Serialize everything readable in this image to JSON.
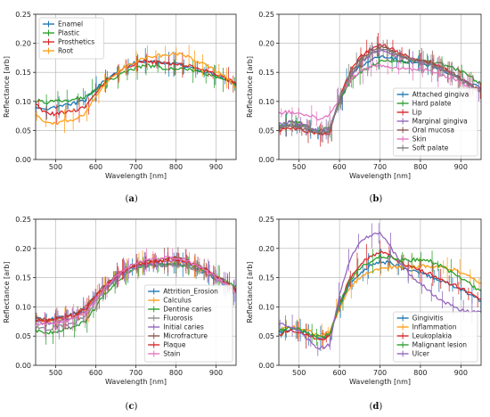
{
  "panels": [
    {
      "label_open": "(",
      "label_letter": "a",
      "label_close": ")"
    },
    {
      "label_open": "(",
      "label_letter": "b",
      "label_close": ")"
    },
    {
      "label_open": "(",
      "label_letter": "c",
      "label_close": ")"
    },
    {
      "label_open": "(",
      "label_letter": "d",
      "label_close": ")"
    }
  ],
  "chart_data": [
    {
      "type": "line",
      "xlabel": "Wavelength [nm]",
      "ylabel": "Reflectance [arb]",
      "xlim": [
        450,
        950
      ],
      "ylim": [
        0,
        0.25
      ],
      "xticks": [
        500,
        600,
        700,
        800,
        900
      ],
      "yticks": [
        0.0,
        0.05,
        0.1,
        0.15,
        0.2,
        0.25
      ],
      "grid": true,
      "legend_position": "top-left",
      "x": [
        450,
        475,
        500,
        525,
        550,
        575,
        600,
        625,
        650,
        675,
        700,
        725,
        750,
        775,
        800,
        825,
        850,
        875,
        900,
        925,
        950
      ],
      "series": [
        {
          "name": "Enamel",
          "color": "#1f77b4",
          "values": [
            0.09,
            0.085,
            0.09,
            0.095,
            0.097,
            0.103,
            0.122,
            0.138,
            0.15,
            0.16,
            0.167,
            0.17,
            0.168,
            0.164,
            0.164,
            0.16,
            0.155,
            0.15,
            0.145,
            0.138,
            0.128
          ]
        },
        {
          "name": "Plastic",
          "color": "#2ca02c",
          "values": [
            0.102,
            0.098,
            0.1,
            0.103,
            0.104,
            0.108,
            0.12,
            0.132,
            0.142,
            0.15,
            0.158,
            0.162,
            0.16,
            0.157,
            0.158,
            0.156,
            0.152,
            0.148,
            0.143,
            0.137,
            0.13
          ]
        },
        {
          "name": "Prosthetics",
          "color": "#d62728",
          "values": [
            0.095,
            0.08,
            0.078,
            0.082,
            0.085,
            0.092,
            0.115,
            0.135,
            0.148,
            0.158,
            0.165,
            0.17,
            0.167,
            0.166,
            0.165,
            0.163,
            0.158,
            0.153,
            0.148,
            0.14,
            0.13
          ]
        },
        {
          "name": "Root",
          "color": "#ff9f1c",
          "values": [
            0.075,
            0.065,
            0.063,
            0.066,
            0.07,
            0.08,
            0.11,
            0.132,
            0.148,
            0.16,
            0.168,
            0.175,
            0.178,
            0.18,
            0.182,
            0.178,
            0.17,
            0.162,
            0.152,
            0.14,
            0.125
          ]
        }
      ]
    },
    {
      "type": "line",
      "xlabel": "Wavelength [nm]",
      "ylabel": "Reflectance [arb]",
      "xlim": [
        450,
        950
      ],
      "ylim": [
        0,
        0.25
      ],
      "xticks": [
        500,
        600,
        700,
        800,
        900
      ],
      "yticks": [
        0.0,
        0.05,
        0.1,
        0.15,
        0.2,
        0.25
      ],
      "grid": true,
      "legend_position": "bottom-right",
      "x": [
        450,
        475,
        500,
        525,
        550,
        575,
        600,
        625,
        650,
        675,
        700,
        725,
        750,
        775,
        800,
        825,
        850,
        875,
        900,
        925,
        950
      ],
      "series": [
        {
          "name": "Attached gingiva",
          "color": "#1f77b4",
          "values": [
            0.055,
            0.06,
            0.058,
            0.052,
            0.045,
            0.05,
            0.1,
            0.14,
            0.16,
            0.172,
            0.178,
            0.176,
            0.17,
            0.168,
            0.166,
            0.162,
            0.155,
            0.148,
            0.14,
            0.13,
            0.122
          ]
        },
        {
          "name": "Hard palate",
          "color": "#2ca02c",
          "values": [
            0.06,
            0.065,
            0.063,
            0.057,
            0.05,
            0.055,
            0.098,
            0.135,
            0.15,
            0.16,
            0.168,
            0.17,
            0.168,
            0.168,
            0.17,
            0.168,
            0.165,
            0.16,
            0.152,
            0.142,
            0.13
          ]
        },
        {
          "name": "Lip",
          "color": "#d62728",
          "values": [
            0.05,
            0.055,
            0.053,
            0.048,
            0.042,
            0.045,
            0.105,
            0.15,
            0.175,
            0.19,
            0.198,
            0.192,
            0.182,
            0.176,
            0.172,
            0.168,
            0.16,
            0.15,
            0.14,
            0.128,
            0.118
          ]
        },
        {
          "name": "Marginal gingiva",
          "color": "#9467bd",
          "values": [
            0.06,
            0.065,
            0.062,
            0.056,
            0.048,
            0.052,
            0.102,
            0.142,
            0.165,
            0.18,
            0.188,
            0.184,
            0.176,
            0.172,
            0.168,
            0.164,
            0.156,
            0.148,
            0.138,
            0.128,
            0.118
          ]
        },
        {
          "name": "Oral mucosa",
          "color": "#8c564b",
          "values": [
            0.052,
            0.058,
            0.056,
            0.05,
            0.044,
            0.048,
            0.104,
            0.146,
            0.17,
            0.186,
            0.194,
            0.188,
            0.178,
            0.173,
            0.17,
            0.166,
            0.158,
            0.15,
            0.14,
            0.128,
            0.118
          ]
        },
        {
          "name": "Skin",
          "color": "#e377c2",
          "values": [
            0.08,
            0.082,
            0.08,
            0.076,
            0.07,
            0.075,
            0.105,
            0.135,
            0.15,
            0.158,
            0.162,
            0.16,
            0.158,
            0.156,
            0.155,
            0.152,
            0.146,
            0.14,
            0.132,
            0.124,
            0.116
          ]
        },
        {
          "name": "Soft palate",
          "color": "#7f7f7f",
          "values": [
            0.055,
            0.06,
            0.058,
            0.052,
            0.046,
            0.05,
            0.102,
            0.145,
            0.168,
            0.182,
            0.19,
            0.186,
            0.178,
            0.172,
            0.168,
            0.164,
            0.156,
            0.148,
            0.138,
            0.126,
            0.116
          ]
        }
      ]
    },
    {
      "type": "line",
      "xlabel": "Wavelength [nm]",
      "ylabel": "Reflectance [arb]",
      "xlim": [
        450,
        950
      ],
      "ylim": [
        0,
        0.25
      ],
      "xticks": [
        500,
        600,
        700,
        800,
        900
      ],
      "yticks": [
        0.0,
        0.05,
        0.1,
        0.15,
        0.2,
        0.25
      ],
      "grid": true,
      "legend_position": "bottom-right",
      "x": [
        450,
        475,
        500,
        525,
        550,
        575,
        600,
        625,
        650,
        675,
        700,
        725,
        750,
        775,
        800,
        825,
        850,
        875,
        900,
        925,
        950
      ],
      "series": [
        {
          "name": "Attrition_Erosion",
          "color": "#1f77b4",
          "values": [
            0.08,
            0.078,
            0.08,
            0.084,
            0.088,
            0.096,
            0.115,
            0.132,
            0.148,
            0.16,
            0.168,
            0.172,
            0.172,
            0.172,
            0.175,
            0.172,
            0.166,
            0.158,
            0.148,
            0.136,
            0.124
          ]
        },
        {
          "name": "Calculus",
          "color": "#ff9f1c",
          "values": [
            0.078,
            0.074,
            0.076,
            0.08,
            0.084,
            0.094,
            0.116,
            0.136,
            0.152,
            0.164,
            0.172,
            0.176,
            0.178,
            0.178,
            0.178,
            0.175,
            0.168,
            0.16,
            0.15,
            0.138,
            0.126
          ]
        },
        {
          "name": "Dentine caries",
          "color": "#2ca02c",
          "values": [
            0.06,
            0.055,
            0.058,
            0.062,
            0.066,
            0.076,
            0.1,
            0.124,
            0.142,
            0.156,
            0.165,
            0.17,
            0.172,
            0.172,
            0.172,
            0.17,
            0.166,
            0.16,
            0.152,
            0.144,
            0.134
          ]
        },
        {
          "name": "Fluorosis",
          "color": "#8c8c8c",
          "values": [
            0.065,
            0.062,
            0.065,
            0.07,
            0.074,
            0.084,
            0.108,
            0.13,
            0.146,
            0.158,
            0.166,
            0.17,
            0.17,
            0.17,
            0.172,
            0.17,
            0.164,
            0.157,
            0.148,
            0.138,
            0.126
          ]
        },
        {
          "name": "Initial caries",
          "color": "#9467bd",
          "values": [
            0.075,
            0.072,
            0.074,
            0.078,
            0.082,
            0.092,
            0.114,
            0.134,
            0.15,
            0.162,
            0.17,
            0.174,
            0.176,
            0.178,
            0.18,
            0.176,
            0.17,
            0.162,
            0.152,
            0.14,
            0.128
          ]
        },
        {
          "name": "Microfracture",
          "color": "#8c564b",
          "values": [
            0.082,
            0.078,
            0.08,
            0.085,
            0.09,
            0.1,
            0.12,
            0.138,
            0.154,
            0.166,
            0.174,
            0.178,
            0.18,
            0.182,
            0.184,
            0.18,
            0.172,
            0.164,
            0.154,
            0.142,
            0.13
          ]
        },
        {
          "name": "Plaque",
          "color": "#d62728",
          "values": [
            0.078,
            0.076,
            0.078,
            0.082,
            0.086,
            0.096,
            0.118,
            0.136,
            0.152,
            0.164,
            0.172,
            0.176,
            0.178,
            0.18,
            0.182,
            0.178,
            0.171,
            0.163,
            0.153,
            0.141,
            0.129
          ]
        },
        {
          "name": "Stain",
          "color": "#e377c2",
          "values": [
            0.072,
            0.07,
            0.072,
            0.076,
            0.08,
            0.09,
            0.112,
            0.134,
            0.152,
            0.166,
            0.176,
            0.18,
            0.182,
            0.184,
            0.184,
            0.18,
            0.172,
            0.162,
            0.15,
            0.138,
            0.126
          ]
        }
      ]
    },
    {
      "type": "line",
      "xlabel": "Wavelength [nm]",
      "ylabel": "Reflectance [arb]",
      "xlim": [
        450,
        950
      ],
      "ylim": [
        0,
        0.25
      ],
      "xticks": [
        500,
        600,
        700,
        800,
        900
      ],
      "yticks": [
        0.0,
        0.05,
        0.1,
        0.15,
        0.2,
        0.25
      ],
      "grid": true,
      "legend_position": "bottom-right",
      "x": [
        450,
        475,
        500,
        525,
        550,
        575,
        600,
        625,
        650,
        675,
        700,
        725,
        750,
        775,
        800,
        825,
        850,
        875,
        900,
        925,
        950
      ],
      "series": [
        {
          "name": "Gingivitis",
          "color": "#1f77b4",
          "values": [
            0.055,
            0.062,
            0.06,
            0.052,
            0.046,
            0.05,
            0.1,
            0.138,
            0.158,
            0.17,
            0.178,
            0.175,
            0.168,
            0.162,
            0.158,
            0.152,
            0.145,
            0.138,
            0.13,
            0.12,
            0.11
          ]
        },
        {
          "name": "Inflammation",
          "color": "#ff9f1c",
          "values": [
            0.06,
            0.066,
            0.064,
            0.058,
            0.052,
            0.056,
            0.098,
            0.132,
            0.15,
            0.16,
            0.166,
            0.168,
            0.168,
            0.168,
            0.17,
            0.17,
            0.168,
            0.165,
            0.16,
            0.152,
            0.14
          ]
        },
        {
          "name": "Leukoplakia",
          "color": "#d62728",
          "values": [
            0.052,
            0.06,
            0.058,
            0.05,
            0.044,
            0.048,
            0.105,
            0.148,
            0.172,
            0.186,
            0.194,
            0.188,
            0.176,
            0.168,
            0.162,
            0.156,
            0.148,
            0.14,
            0.132,
            0.122,
            0.112
          ]
        },
        {
          "name": "Malignant lesion",
          "color": "#2ca02c",
          "values": [
            0.058,
            0.064,
            0.062,
            0.055,
            0.048,
            0.052,
            0.104,
            0.144,
            0.166,
            0.178,
            0.186,
            0.184,
            0.18,
            0.18,
            0.182,
            0.178,
            0.17,
            0.16,
            0.15,
            0.138,
            0.126
          ]
        },
        {
          "name": "Ulcer",
          "color": "#9467bd",
          "values": [
            0.07,
            0.068,
            0.06,
            0.042,
            0.028,
            0.035,
            0.12,
            0.18,
            0.212,
            0.222,
            0.226,
            0.205,
            0.175,
            0.155,
            0.14,
            0.125,
            0.112,
            0.102,
            0.095,
            0.092,
            0.09
          ]
        }
      ]
    }
  ]
}
